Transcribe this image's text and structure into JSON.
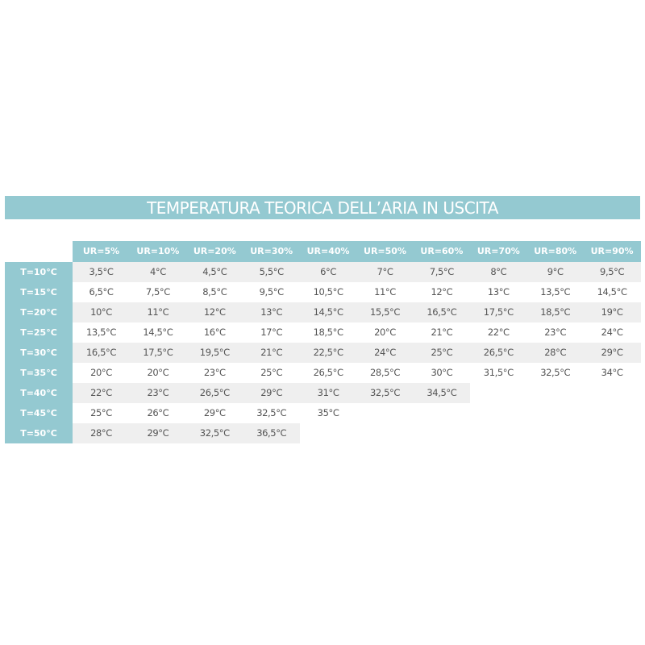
{
  "colors": {
    "accent": "#94c9d1",
    "stripe": "#efefef",
    "text": "#555555"
  },
  "chart_data": {
    "type": "table",
    "title": "TEMPERATURA TEORICA DELL’ARIA IN USCITA",
    "columns": [
      "UR=5%",
      "UR=10%",
      "UR=20%",
      "UR=30%",
      "UR=40%",
      "UR=50%",
      "UR=60%",
      "UR=70%",
      "UR=80%",
      "UR=90%"
    ],
    "rows": [
      {
        "label": "T=10°C",
        "values": [
          "3,5°C",
          "4°C",
          "4,5°C",
          "5,5°C",
          "6°C",
          "7°C",
          "7,5°C",
          "8°C",
          "9°C",
          "9,5°C"
        ]
      },
      {
        "label": "T=15°C",
        "values": [
          "6,5°C",
          "7,5°C",
          "8,5°C",
          "9,5°C",
          "10,5°C",
          "11°C",
          "12°C",
          "13°C",
          "13,5°C",
          "14,5°C"
        ]
      },
      {
        "label": "T=20°C",
        "values": [
          "10°C",
          "11°C",
          "12°C",
          "13°C",
          "14,5°C",
          "15,5°C",
          "16,5°C",
          "17,5°C",
          "18,5°C",
          "19°C"
        ]
      },
      {
        "label": "T=25°C",
        "values": [
          "13,5°C",
          "14,5°C",
          "16°C",
          "17°C",
          "18,5°C",
          "20°C",
          "21°C",
          "22°C",
          "23°C",
          "24°C"
        ]
      },
      {
        "label": "T=30°C",
        "values": [
          "16,5°C",
          "17,5°C",
          "19,5°C",
          "21°C",
          "22,5°C",
          "24°C",
          "25°C",
          "26,5°C",
          "28°C",
          "29°C"
        ]
      },
      {
        "label": "T=35°C",
        "values": [
          "20°C",
          "20°C",
          "23°C",
          "25°C",
          "26,5°C",
          "28,5°C",
          "30°C",
          "31,5°C",
          "32,5°C",
          "34°C"
        ]
      },
      {
        "label": "T=40°C",
        "values": [
          "22°C",
          "23°C",
          "26,5°C",
          "29°C",
          "31°C",
          "32,5°C",
          "34,5°C"
        ]
      },
      {
        "label": "T=45°C",
        "values": [
          "25°C",
          "26°C",
          "29°C",
          "32,5°C",
          "35°C"
        ]
      },
      {
        "label": "T=50°C",
        "values": [
          "28°C",
          "29°C",
          "32,5°C",
          "36,5°C"
        ]
      }
    ]
  }
}
